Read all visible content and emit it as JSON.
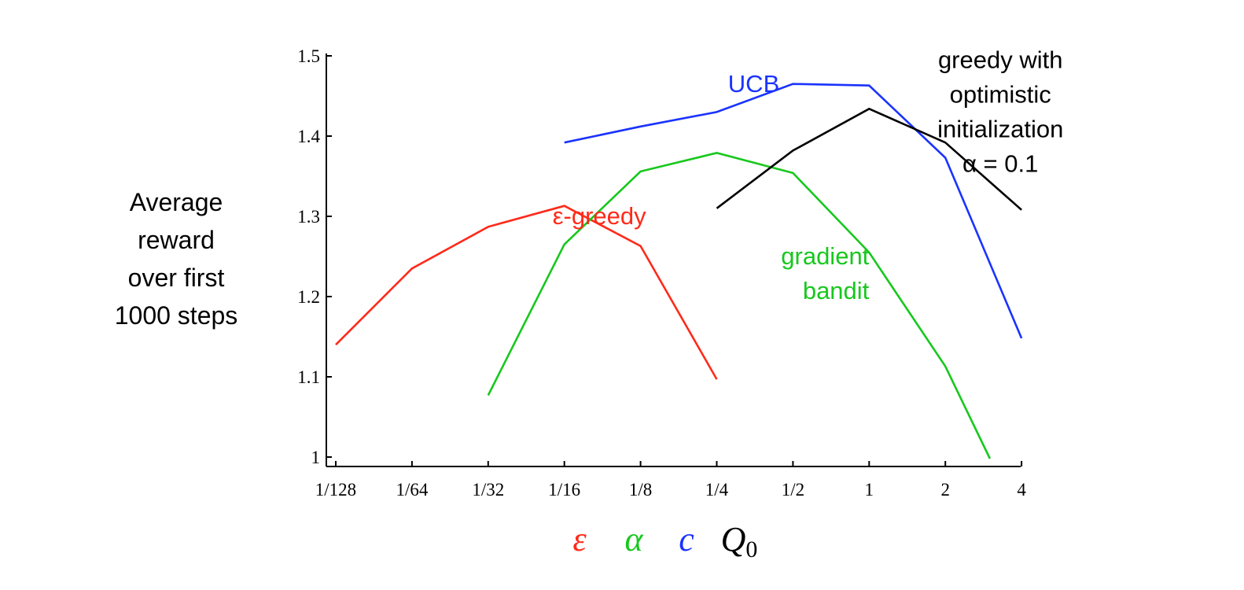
{
  "chart_data": {
    "type": "line",
    "ylabel_lines": [
      "Average",
      "reward",
      "over first",
      "1000 steps"
    ],
    "xlabel_symbols": [
      {
        "text": "ε",
        "color": "#ff2a1a"
      },
      {
        "text": "α",
        "color": "#17c81d"
      },
      {
        "text": "c",
        "color": "#1a33ff"
      },
      {
        "text": "Q",
        "sub": "0",
        "color": "#000000"
      }
    ],
    "x_ticks": [
      "1/128",
      "1/64",
      "1/32",
      "1/16",
      "1/8",
      "1/4",
      "1/2",
      "1",
      "2",
      "4"
    ],
    "y_ticks": [
      "1",
      "1.1",
      "1.2",
      "1.3",
      "1.4",
      "1.5"
    ],
    "ylim": [
      1.0,
      1.5
    ],
    "x_scale": "log2",
    "grid": false,
    "series": [
      {
        "name": "ε-greedy",
        "label_lines": [
          "ε-greedy"
        ],
        "label_anchor": "middle",
        "label_pos": {
          "x": 0.0859,
          "y": 1.29
        },
        "color": "#ff2a1a",
        "x": [
          "1/128",
          "1/64",
          "1/32",
          "1/16",
          "1/8",
          "1/4"
        ],
        "values": [
          1.14,
          1.235,
          1.287,
          1.313,
          1.263,
          1.097
        ]
      },
      {
        "name": "gradient bandit",
        "label_lines": [
          "gradient",
          "bandit"
        ],
        "label_anchor": "end",
        "label_pos": {
          "x": 1.0,
          "y": 1.24
        },
        "color": "#17c81d",
        "x": [
          "1/32",
          "1/16",
          "1/8",
          "1/4",
          "1/2",
          "1",
          "2",
          "3"
        ],
        "values": [
          1.077,
          1.265,
          1.356,
          1.379,
          1.354,
          1.255,
          1.113,
          0.998
        ]
      },
      {
        "name": "UCB",
        "label_lines": [
          "UCB"
        ],
        "label_anchor": "middle",
        "label_pos": {
          "x": 0.35,
          "y": 1.455
        },
        "color": "#1a33ff",
        "x": [
          "1/16",
          "1/8",
          "1/4",
          "1/2",
          "1",
          "2",
          "4"
        ],
        "values": [
          1.392,
          1.412,
          1.43,
          1.465,
          1.463,
          1.373,
          1.148
        ]
      },
      {
        "name": "greedy with optimistic initialization α = 0.1",
        "label_lines": [
          "greedy with",
          "optimistic",
          "initialization",
          "α = 0.1"
        ],
        "label_anchor": "middle",
        "label_pos": {
          "x": 3.3,
          "y": 1.485
        },
        "color": "#000000",
        "x": [
          "1/4",
          "1/2",
          "1",
          "2",
          "4"
        ],
        "values": [
          1.31,
          1.382,
          1.434,
          1.392,
          1.308
        ]
      }
    ]
  }
}
